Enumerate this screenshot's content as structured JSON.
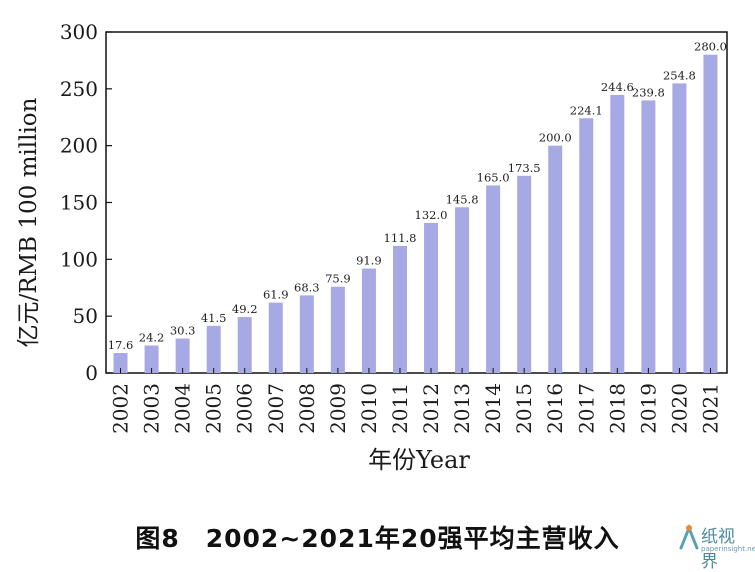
{
  "chart_data": {
    "type": "bar",
    "categories": [
      "2002",
      "2003",
      "2004",
      "2005",
      "2006",
      "2007",
      "2008",
      "2009",
      "2010",
      "2011",
      "2012",
      "2013",
      "2014",
      "2015",
      "2016",
      "2017",
      "2018",
      "2019",
      "2020",
      "2021"
    ],
    "values": [
      17.6,
      24.2,
      30.3,
      41.5,
      49.2,
      61.9,
      68.3,
      75.9,
      91.9,
      111.8,
      132.0,
      145.8,
      165.0,
      173.5,
      200.0,
      224.1,
      244.6,
      239.8,
      254.8,
      280.0
    ],
    "value_labels": [
      "17.6",
      "24.2",
      "30.3",
      "41.5",
      "49.2",
      "61.9",
      "68.3",
      "75.9",
      "91.9",
      "111.8",
      "132.0",
      "145.8",
      "165.0",
      "173.5",
      "200.0",
      "224.1",
      "244.6",
      "239.8",
      "254.8",
      "280.0"
    ],
    "yticks": [
      0,
      50,
      100,
      150,
      200,
      250,
      300
    ],
    "ylim": [
      0,
      300
    ],
    "ylabel": "亿元/RMB 100 million",
    "xlabel": "年份Year",
    "bar_color": "#a6a9e4",
    "grid": false,
    "legend": "none"
  },
  "caption": "图8　2002~2021年20强平均主营收入",
  "watermark": {
    "logo": "纸视界",
    "site": "paperinsight.net"
  }
}
